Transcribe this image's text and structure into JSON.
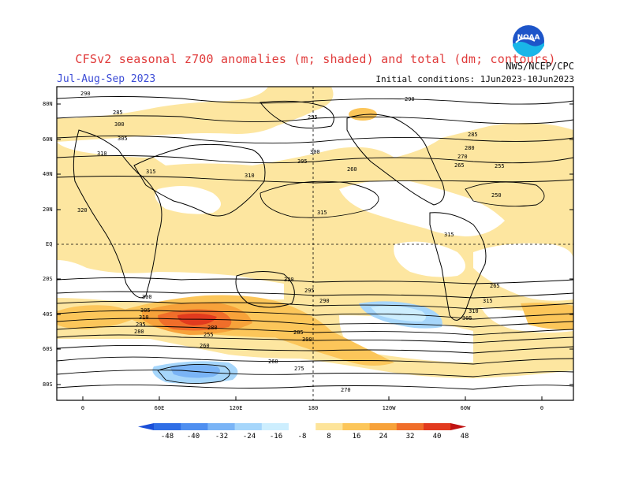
{
  "title": "CFSv2 seasonal z700 anomalies (m; shaded) and total (dm; contours)",
  "season": "Jul-Aug-Sep 2023",
  "initial_conditions": "Initial conditions: 1Jun2023-10Jun2023",
  "agency": "NWS/NCEP/CPC",
  "logo_text": "NOAA",
  "lat_labels": [
    "80N",
    "60N",
    "40N",
    "20N",
    "EQ",
    "20S",
    "40S",
    "60S",
    "80S"
  ],
  "lon_labels": [
    "0",
    "60E",
    "120E",
    "180",
    "120W",
    "60W",
    "0"
  ],
  "contour_labels": [
    "290",
    "285",
    "300",
    "305",
    "310",
    "315",
    "320",
    "315",
    "310",
    "305",
    "300",
    "295",
    "290",
    "285",
    "280",
    "270",
    "265",
    "260",
    "255",
    "250",
    "315",
    "320",
    "300",
    "305",
    "310",
    "295",
    "280",
    "280",
    "255",
    "260",
    "295",
    "290",
    "285",
    "300",
    "305",
    "310",
    "315",
    "265",
    "260",
    "275",
    "270"
  ],
  "colorbar": {
    "ticks": [
      "-48",
      "-40",
      "-32",
      "-24",
      "-16",
      "-8",
      "8",
      "16",
      "24",
      "32",
      "40",
      "48"
    ],
    "colors": [
      "#1a4fd8",
      "#2f6ee6",
      "#4f8ff0",
      "#7ab4f6",
      "#a6d6fb",
      "#cdeefe",
      "#ffffff",
      "#fde49a",
      "#fcc65a",
      "#f7a23a",
      "#f06e2a",
      "#e23a1e",
      "#c01313"
    ]
  }
}
